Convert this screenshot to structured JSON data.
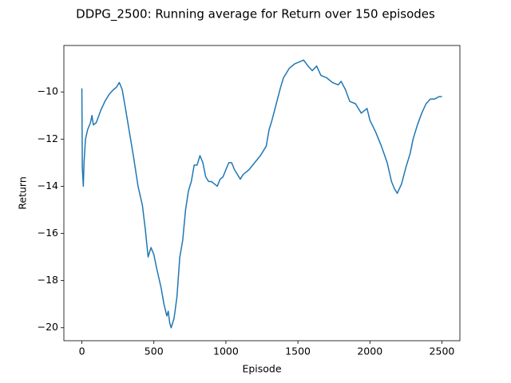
{
  "chart_data": {
    "type": "line",
    "title": "DDPG_2500: Running average for Return over 150 episodes",
    "x_label": "Episode",
    "y_label": "Return",
    "x": [
      0,
      3,
      10,
      15,
      25,
      40,
      60,
      70,
      80,
      100,
      130,
      160,
      190,
      220,
      240,
      260,
      280,
      300,
      330,
      360,
      390,
      420,
      440,
      460,
      480,
      500,
      520,
      550,
      570,
      590,
      600,
      610,
      620,
      640,
      660,
      680,
      700,
      720,
      740,
      760,
      780,
      800,
      820,
      840,
      860,
      880,
      900,
      920,
      940,
      960,
      980,
      1000,
      1020,
      1040,
      1060,
      1080,
      1100,
      1120,
      1160,
      1200,
      1240,
      1280,
      1300,
      1320,
      1350,
      1380,
      1400,
      1440,
      1480,
      1520,
      1540,
      1570,
      1600,
      1630,
      1660,
      1700,
      1740,
      1780,
      1800,
      1830,
      1860,
      1900,
      1940,
      1980,
      2000,
      2040,
      2080,
      2120,
      2150,
      2170,
      2190,
      2220,
      2250,
      2280,
      2300,
      2330,
      2360,
      2390,
      2420,
      2450,
      2480,
      2500
    ],
    "series": [
      {
        "name": "Return",
        "color": "#1f77b4",
        "values": [
          -9.85,
          -13.2,
          -14.0,
          -13.0,
          -12.0,
          -11.6,
          -11.3,
          -11.0,
          -11.4,
          -11.3,
          -10.8,
          -10.4,
          -10.1,
          -9.9,
          -9.8,
          -9.6,
          -9.9,
          -10.6,
          -11.7,
          -12.8,
          -14.0,
          -14.8,
          -15.8,
          -17.0,
          -16.6,
          -16.9,
          -17.5,
          -18.3,
          -19.0,
          -19.5,
          -19.3,
          -19.8,
          -20.0,
          -19.6,
          -18.7,
          -17.0,
          -16.3,
          -15.0,
          -14.2,
          -13.8,
          -13.1,
          -13.1,
          -12.7,
          -13.0,
          -13.6,
          -13.8,
          -13.8,
          -13.9,
          -14.0,
          -13.7,
          -13.6,
          -13.3,
          -13.0,
          -13.0,
          -13.3,
          -13.5,
          -13.7,
          -13.5,
          -13.3,
          -13.0,
          -12.7,
          -12.3,
          -11.6,
          -11.2,
          -10.5,
          -9.8,
          -9.4,
          -9.0,
          -8.8,
          -8.7,
          -8.65,
          -8.9,
          -9.1,
          -8.9,
          -9.3,
          -9.4,
          -9.6,
          -9.7,
          -9.55,
          -9.9,
          -10.4,
          -10.5,
          -10.9,
          -10.7,
          -11.2,
          -11.7,
          -12.3,
          -13.0,
          -13.8,
          -14.1,
          -14.3,
          -13.9,
          -13.2,
          -12.6,
          -12.0,
          -11.4,
          -10.9,
          -10.5,
          -10.3,
          -10.3,
          -10.2,
          -10.2
        ]
      }
    ],
    "xlim": [
      -125,
      2625
    ],
    "ylim": [
      -20.55,
      -8.03
    ],
    "xticks": [
      0,
      500,
      1000,
      1500,
      2000,
      2500
    ],
    "yticks": [
      {
        "value": -20,
        "label": "−20"
      },
      {
        "value": -18,
        "label": "−18"
      },
      {
        "value": -16,
        "label": "−16"
      },
      {
        "value": -14,
        "label": "−14"
      },
      {
        "value": -12,
        "label": "−12"
      },
      {
        "value": -10,
        "label": "−10"
      }
    ],
    "grid": false
  }
}
